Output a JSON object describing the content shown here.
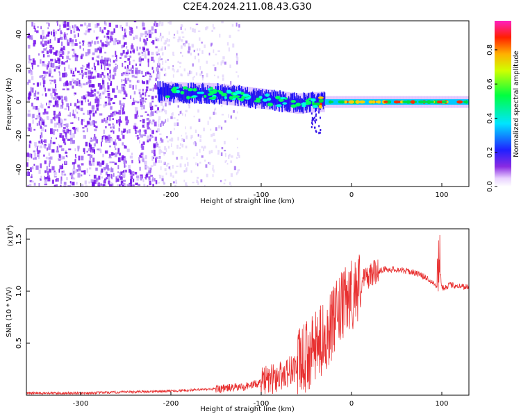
{
  "title": "C2E4.2024.211.08.43.G30",
  "chart_data": [
    {
      "type": "heatmap",
      "xlabel": "Height of straight line (km)",
      "ylabel": "Frequency (Hz)",
      "xlim": [
        -360,
        130
      ],
      "ylim": [
        -50,
        48
      ],
      "x_ticks": [
        -300,
        -200,
        -100,
        0,
        100
      ],
      "y_ticks": [
        -40,
        -20,
        0,
        20,
        40
      ],
      "colorbar": {
        "label": "Normalized spectral amplitude",
        "range": [
          0,
          0.97
        ],
        "ticks": [
          0.0,
          0.2,
          0.4,
          0.6,
          0.8
        ],
        "tick_labels": [
          "0.0",
          "0.2",
          "0.4",
          "0.6",
          "0.8"
        ],
        "colormap": "rainbow (white-violet-blue-cyan-green-yellow-red-magenta)"
      },
      "features": {
        "noise_region_x": [
          -360,
          -215
        ],
        "sparse_noise_x": [
          -215,
          -125
        ],
        "signal_band": [
          {
            "x": -215,
            "center_hz": 6
          },
          {
            "x": -150,
            "center_hz": 5
          },
          {
            "x": -100,
            "center_hz": 2
          },
          {
            "x": -60,
            "center_hz": -1
          },
          {
            "x": -35,
            "center_hz": 0
          },
          {
            "x": 0,
            "center_hz": 0
          },
          {
            "x": 130,
            "center_hz": 0
          }
        ]
      }
    },
    {
      "type": "line",
      "xlabel": "Height of straight line (km)",
      "ylabel": "SNR (10 * V/V)",
      "y_scale_label": "(x10",
      "y_scale_exp": "4",
      "y_scale_close": ")",
      "xlim": [
        -360,
        130
      ],
      "ylim": [
        0,
        1.6
      ],
      "x_ticks": [
        -300,
        -200,
        -100,
        0,
        100
      ],
      "y_ticks": [
        0.5,
        1.0,
        1.5
      ],
      "y_tick_labels": [
        "0.5",
        "1.0",
        "1.5"
      ],
      "series": [
        {
          "color": "#e83030",
          "x": [
            -360,
            -300,
            -250,
            -200,
            -150,
            -120,
            -100,
            -80,
            -60,
            -40,
            -25,
            -15,
            -5,
            5,
            15,
            25,
            35,
            50,
            70,
            85,
            95,
            97,
            100,
            110,
            130
          ],
          "y": [
            0.02,
            0.02,
            0.03,
            0.04,
            0.06,
            0.08,
            0.12,
            0.18,
            0.28,
            0.45,
            0.62,
            0.78,
            0.92,
            1.02,
            1.12,
            1.18,
            1.21,
            1.21,
            1.18,
            1.12,
            1.05,
            1.3,
            1.03,
            1.06,
            1.04
          ]
        }
      ]
    }
  ]
}
